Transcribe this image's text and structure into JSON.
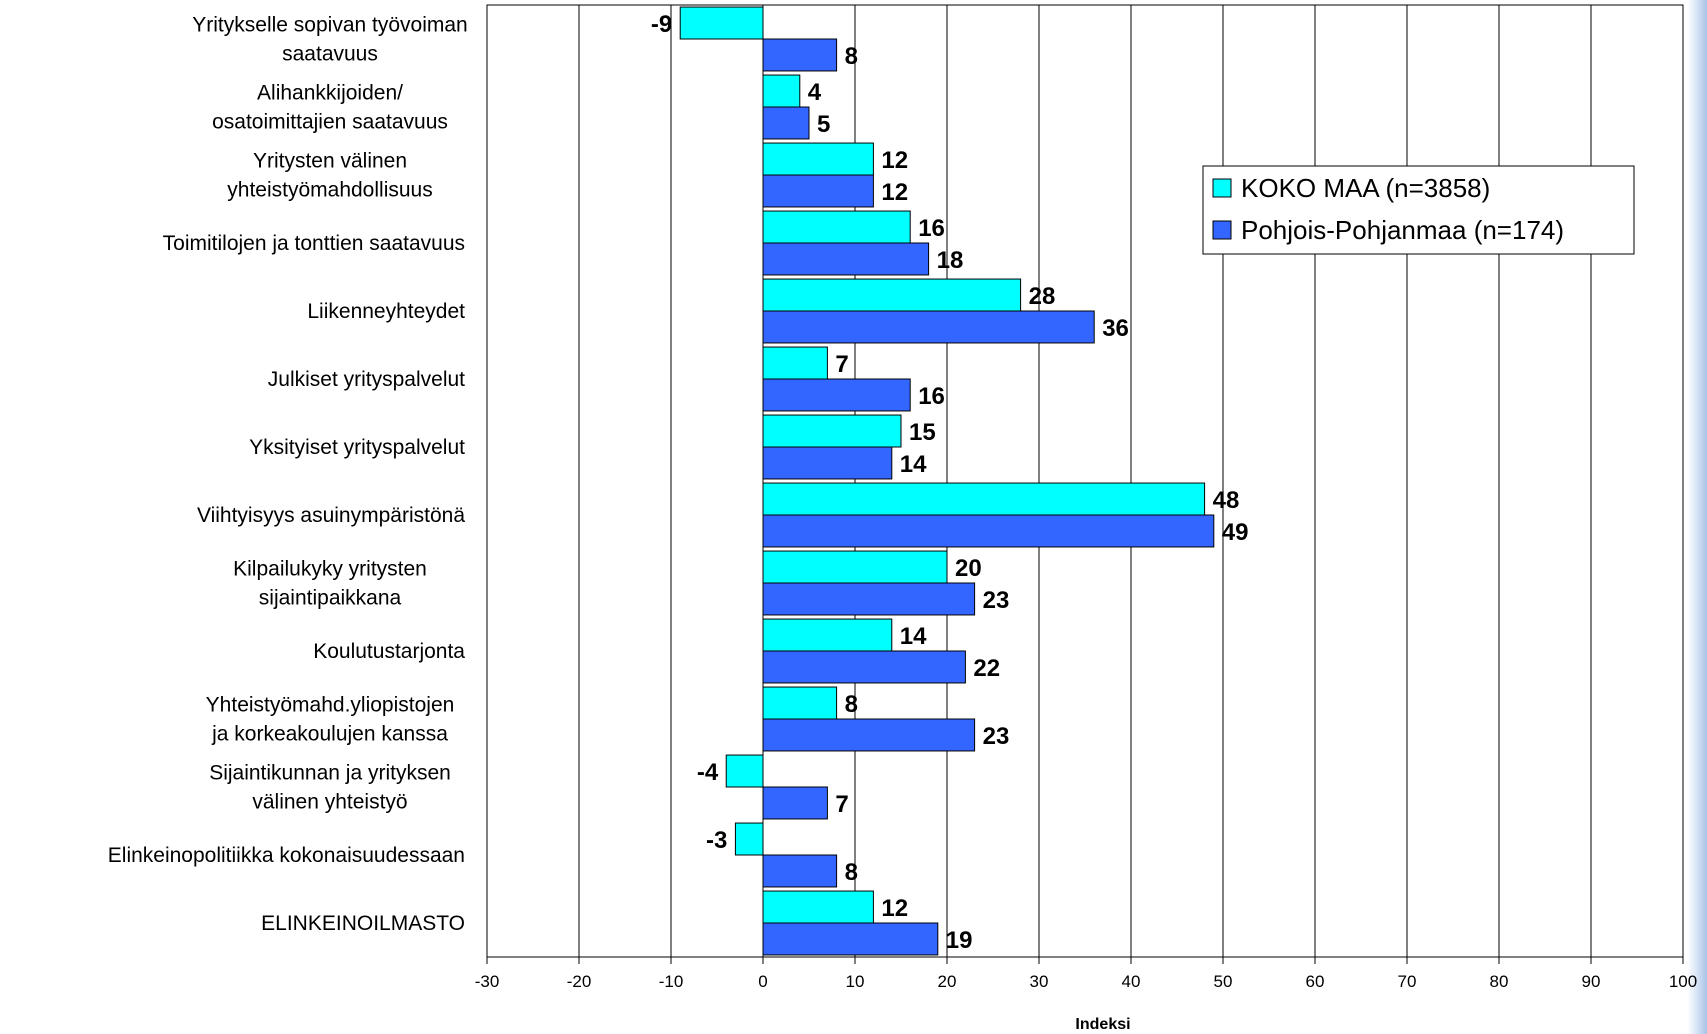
{
  "chart_data": {
    "type": "bar",
    "orientation": "horizontal",
    "categories": [
      [
        "Yritykselle sopivan työvoiman",
        "saatavuus"
      ],
      [
        "Alihankkijoiden/",
        "osatoimittajien saatavuus"
      ],
      [
        "Yritysten välinen",
        "yhteistyömahdollisuus"
      ],
      [
        "Toimitilojen ja tonttien saatavuus"
      ],
      [
        "Liikenneyhteydet"
      ],
      [
        "Julkiset yrityspalvelut"
      ],
      [
        "Yksityiset yrityspalvelut"
      ],
      [
        "Viihtyisyys asuinympäristönä"
      ],
      [
        "Kilpailukyky yritysten",
        "sijaintipaikkana"
      ],
      [
        "Koulutustarjonta"
      ],
      [
        "Yhteistyömahd.yliopistojen",
        "ja korkeakoulujen kanssa"
      ],
      [
        "Sijaintikunnan ja yrityksen",
        "välinen yhteistyö"
      ],
      [
        "Elinkeinopolitiikka kokonaisuudessaan"
      ],
      [
        "ELINKEINOILMASTO"
      ]
    ],
    "series": [
      {
        "name": "KOKO MAA (n=3858)",
        "color": "#00ffff",
        "values": [
          -9,
          4,
          12,
          16,
          28,
          7,
          15,
          48,
          20,
          14,
          8,
          -4,
          -3,
          12
        ]
      },
      {
        "name": "Pohjois-Pohjanmaa (n=174)",
        "color": "#3366ff",
        "values": [
          8,
          5,
          12,
          18,
          36,
          16,
          14,
          49,
          23,
          22,
          23,
          7,
          8,
          19
        ]
      }
    ],
    "xlabel": "Indeksi",
    "xlim": [
      -30,
      100
    ],
    "xticks": [
      -30,
      -20,
      -10,
      0,
      10,
      20,
      30,
      40,
      50,
      60,
      70,
      80,
      90,
      100
    ],
    "grid": "vertical",
    "legend_position": "right"
  }
}
